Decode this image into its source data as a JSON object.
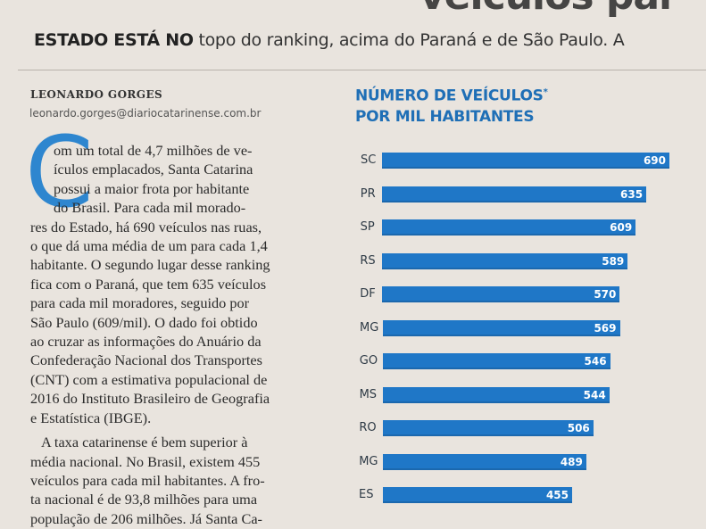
{
  "headline_fragment": "veículos par",
  "subhead": {
    "bold": "ESTADO ESTÁ NO",
    "rest": " topo do ranking, acima do Paraná e de São Paulo. A"
  },
  "byline": {
    "author": "LEONARDO GORGES",
    "email": "leonardo.gorges@diariocatarinense.com.br"
  },
  "article": {
    "dropcap": "C",
    "paragraph1": [
      "om um total de 4,7 milhões de ve-",
      "ículos emplacados, Santa Catarina",
      "possui a maior frota por habitante",
      "do Brasil. Para cada mil morado-",
      "res do Estado, há 690 veículos nas ruas,",
      "o que dá uma média de um para cada 1,4",
      "habitante. O segundo lugar desse ranking",
      "fica com o Paraná, que tem 635 veículos",
      "para cada mil moradores, seguido por",
      "São Paulo (609/mil). O dado foi obtido",
      "ao cruzar as informações do Anuário da",
      "Confederação Nacional dos Transportes",
      "(CNT) com a estimativa populacional de",
      "2016 do Instituto Brasileiro de Geografia",
      "e Estatística (IBGE)."
    ],
    "paragraph2": [
      "A taxa catarinense é bem superior à",
      "média nacional. No Brasil, existem 455",
      "veículos para cada mil habitantes. A fro-",
      "ta nacional é de 93,8 milhões para uma",
      "população de 206 milhões. Já Santa Ca-"
    ]
  },
  "chart_data": {
    "type": "bar",
    "orientation": "horizontal",
    "title_line1": "NÚMERO DE VEÍCULOS",
    "title_marker": "*",
    "title_line2": "POR MIL HABITANTES",
    "categories": [
      "SC",
      "PR",
      "SP",
      "RS",
      "DF",
      "MG",
      "GO",
      "MS",
      "RO",
      "MG",
      "ES"
    ],
    "values": [
      690,
      635,
      609,
      589,
      570,
      569,
      546,
      544,
      506,
      489,
      455
    ],
    "value_labels": [
      "690",
      "635",
      "609",
      "589",
      "570",
      "569",
      "546",
      "544",
      "506",
      "489",
      "455"
    ],
    "bar_color": "#1f77c7",
    "xlim": [
      0,
      690
    ]
  },
  "colors": {
    "accent": "#1f77c7",
    "title_blue": "#1f6fb6",
    "paper": "#e9e4de"
  }
}
